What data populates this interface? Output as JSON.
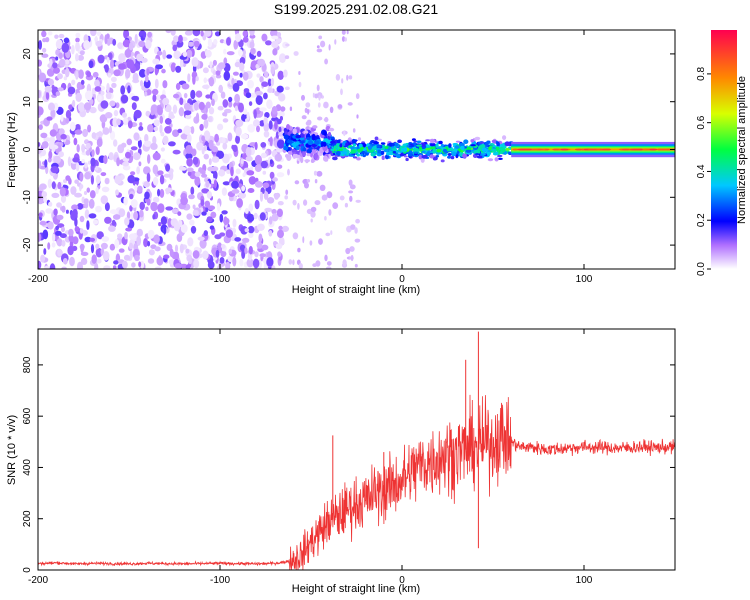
{
  "title": "S199.2025.291.02.08.G21",
  "chart_data": [
    {
      "type": "heatmap",
      "xlabel": "Height of straight line (km)",
      "ylabel": "Frequency (Hz)",
      "xlim": [
        -200,
        150
      ],
      "ylim": [
        -25,
        25
      ],
      "xticks": [
        -200,
        -100,
        0,
        100
      ],
      "yticks": [
        -20,
        -10,
        0,
        10,
        20
      ],
      "regions": [
        {
          "name": "noise",
          "x_range": [
            -200,
            -64
          ],
          "y_range": [
            -25,
            25
          ],
          "amplitude": 0.05
        },
        {
          "name": "onset",
          "x_range": [
            -64,
            -38
          ],
          "center_hz": 1.5,
          "spread_hz": 6,
          "amplitude": 0.3
        },
        {
          "name": "signal",
          "x_range": [
            -38,
            60
          ],
          "center_hz": 0,
          "spread_hz": 3,
          "amplitude": 0.45
        },
        {
          "name": "stable",
          "x_range": [
            60,
            150
          ],
          "center_hz": 0,
          "spread_hz": 1.5,
          "amplitude": 0.9
        }
      ],
      "colorbar": {
        "label": "Normalized spectral amplitude",
        "range": [
          0,
          0.98
        ],
        "ticks": [
          0.0,
          0.2,
          0.4,
          0.6,
          0.8
        ]
      }
    },
    {
      "type": "line",
      "xlabel": "Height of straight line (km)",
      "ylabel": "SNR (10 * v/v)",
      "xlim": [
        -200,
        150
      ],
      "ylim": [
        0,
        940
      ],
      "xticks": [
        -200,
        -100,
        0,
        100
      ],
      "yticks": [
        0,
        200,
        400,
        600,
        800
      ],
      "color": "#ee3333",
      "series": [
        {
          "name": "SNR",
          "x": [
            -200,
            -190,
            -180,
            -170,
            -160,
            -150,
            -140,
            -130,
            -120,
            -110,
            -100,
            -90,
            -80,
            -70,
            -65,
            -60,
            -55,
            -50,
            -45,
            -40,
            -35,
            -30,
            -25,
            -20,
            -15,
            -10,
            -5,
            0,
            5,
            10,
            15,
            20,
            25,
            30,
            35,
            40,
            45,
            50,
            55,
            60,
            65,
            70,
            80,
            90,
            100,
            110,
            120,
            130,
            140,
            150
          ],
          "values": [
            25,
            28,
            24,
            26,
            25,
            24,
            26,
            25,
            24,
            25,
            26,
            25,
            24,
            26,
            30,
            40,
            60,
            110,
            150,
            190,
            210,
            240,
            260,
            270,
            300,
            310,
            330,
            350,
            380,
            410,
            420,
            440,
            450,
            460,
            470,
            480,
            490,
            500,
            520,
            500,
            480,
            480,
            470,
            475,
            480,
            478,
            475,
            480,
            478,
            480
          ],
          "peak_annotations": [
            {
              "x": -38,
              "y": 525
            },
            {
              "x": -10,
              "y": 460
            },
            {
              "x": 35,
              "y": 820
            },
            {
              "x": 42,
              "y": 930
            },
            {
              "x": 42,
              "y": 85
            }
          ]
        }
      ]
    }
  ]
}
